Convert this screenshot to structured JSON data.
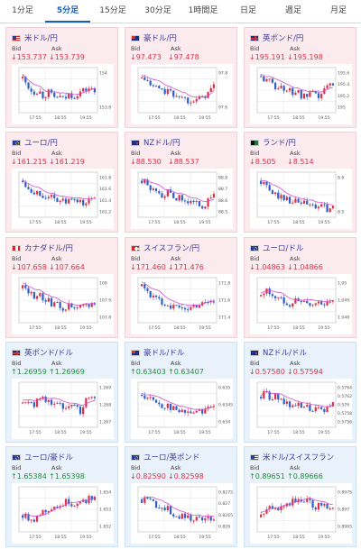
{
  "tabs": [
    {
      "label": "1分足",
      "active": false
    },
    {
      "label": "5分足",
      "active": true
    },
    {
      "label": "15分足",
      "active": false
    },
    {
      "label": "30分足",
      "active": false
    },
    {
      "label": "1時間足",
      "active": false
    },
    {
      "label": "日足",
      "active": false
    },
    {
      "label": "週足",
      "active": false
    },
    {
      "label": "月足",
      "active": false
    }
  ],
  "labels": {
    "bid": "Bid",
    "ask": "Ask"
  },
  "time_labels": [
    "17:55",
    "18:55",
    "19:55"
  ],
  "cards": [
    {
      "title": "米ドル/円",
      "flag": "us",
      "bid": "153.737",
      "ask": "153.739",
      "dir": "down",
      "theme": "pink",
      "yticks": [
        "154",
        "153.8"
      ],
      "trend": [
        0.8,
        0.6,
        0.45,
        0.5,
        0.35,
        0.45,
        0.3,
        0.35,
        0.25,
        0.4,
        0.35,
        0.45,
        0.5,
        0.55,
        0.45
      ]
    },
    {
      "title": "豪ドル/円",
      "flag": "au",
      "bid": "97.473",
      "ask": "97.478",
      "dir": "down",
      "theme": "pink",
      "yticks": [
        "97.8",
        "97.6"
      ],
      "trend": [
        0.8,
        0.75,
        0.55,
        0.6,
        0.45,
        0.5,
        0.35,
        0.4,
        0.3,
        0.25,
        0.3,
        0.25,
        0.35,
        0.45,
        0.6
      ]
    },
    {
      "title": "英ポンド/円",
      "flag": "gb",
      "bid": "195.191",
      "ask": "195.198",
      "dir": "down",
      "theme": "pink",
      "yticks": [
        "195.6",
        "195.4",
        "195.2",
        "195"
      ],
      "trend": [
        0.85,
        0.7,
        0.75,
        0.55,
        0.6,
        0.5,
        0.45,
        0.5,
        0.3,
        0.35,
        0.4,
        0.3,
        0.45,
        0.6,
        0.7
      ]
    },
    {
      "title": "ユーロ/円",
      "flag": "eu",
      "bid": "161.215",
      "ask": "161.219",
      "dir": "down",
      "theme": "pink",
      "yticks": [
        "161.8",
        "161.6",
        "161.4",
        "161.2"
      ],
      "trend": [
        0.85,
        0.7,
        0.6,
        0.55,
        0.45,
        0.5,
        0.35,
        0.4,
        0.3,
        0.35,
        0.3,
        0.35,
        0.25,
        0.35,
        0.45
      ]
    },
    {
      "title": "NZドル/円",
      "flag": "nz",
      "bid": "88.530",
      "ask": "88.537",
      "dir": "down",
      "theme": "pink",
      "yticks": [
        "88.8",
        "88.7",
        "88.6",
        "88.5"
      ],
      "trend": [
        0.85,
        0.75,
        0.6,
        0.65,
        0.5,
        0.55,
        0.4,
        0.45,
        0.3,
        0.35,
        0.25,
        0.3,
        0.2,
        0.35,
        0.5
      ]
    },
    {
      "title": "ランド/円",
      "flag": "za",
      "bid": "8.505",
      "ask": "8.514",
      "dir": "down",
      "theme": "pink",
      "yticks": [
        "8.6",
        "8.5"
      ],
      "trend": [
        0.85,
        0.7,
        0.55,
        0.5,
        0.45,
        0.4,
        0.35,
        0.3,
        0.3,
        0.25,
        0.2,
        0.2,
        0.18,
        0.15,
        0.15
      ]
    },
    {
      "title": "カナダドル/円",
      "flag": "ca",
      "bid": "107.658",
      "ask": "107.664",
      "dir": "down",
      "theme": "pink",
      "yticks": [
        "108",
        "107.9",
        "107.8"
      ],
      "trend": [
        0.8,
        0.75,
        0.6,
        0.65,
        0.5,
        0.55,
        0.35,
        0.4,
        0.3,
        0.35,
        0.25,
        0.3,
        0.35,
        0.4,
        0.45
      ]
    },
    {
      "title": "スイスフラン/円",
      "flag": "ch",
      "bid": "171.460",
      "ask": "171.476",
      "dir": "down",
      "theme": "pink",
      "yticks": [
        "171.8",
        "171.6",
        "171.4"
      ],
      "trend": [
        0.85,
        0.75,
        0.6,
        0.5,
        0.45,
        0.4,
        0.35,
        0.3,
        0.25,
        0.3,
        0.35,
        0.4,
        0.45,
        0.5,
        0.45
      ]
    },
    {
      "title": "ユーロ/ドル",
      "flag": "eu",
      "bid": "1.04863",
      "ask": "1.04866",
      "dir": "down",
      "theme": "pink",
      "yticks": [
        "1.05",
        "1.049",
        "1.048"
      ],
      "trend": [
        0.6,
        0.75,
        0.65,
        0.55,
        0.5,
        0.45,
        0.4,
        0.55,
        0.45,
        0.4,
        0.35,
        0.45,
        0.4,
        0.5,
        0.45
      ]
    },
    {
      "title": "英ポンド/ドル",
      "flag": "gb",
      "bid": "1.26959",
      "ask": "1.26969",
      "dir": "up",
      "theme": "blue",
      "yticks": [
        "1.269",
        "1.268",
        "1.267"
      ],
      "trend": [
        0.55,
        0.65,
        0.5,
        0.6,
        0.7,
        0.55,
        0.6,
        0.5,
        0.45,
        0.55,
        0.5,
        0.3,
        0.55,
        0.7,
        0.75
      ]
    },
    {
      "title": "豪ドル/ドル",
      "flag": "au",
      "bid": "0.63403",
      "ask": "0.63407",
      "dir": "up",
      "theme": "blue",
      "yticks": [
        "0.635",
        "0.6345",
        "0.634"
      ],
      "trend": [
        0.75,
        0.7,
        0.6,
        0.55,
        0.45,
        0.5,
        0.4,
        0.35,
        0.3,
        0.35,
        0.3,
        0.4,
        0.35,
        0.45,
        0.5
      ]
    },
    {
      "title": "NZドル/ドル",
      "flag": "nz",
      "bid": "0.57580",
      "ask": "0.57594",
      "dir": "down",
      "theme": "blue",
      "yticks": [
        "0.5764",
        "0.5762",
        "0.576",
        "0.5758",
        "0.5756"
      ],
      "trend": [
        0.7,
        0.8,
        0.65,
        0.7,
        0.55,
        0.6,
        0.45,
        0.5,
        0.4,
        0.45,
        0.35,
        0.4,
        0.3,
        0.45,
        0.55
      ]
    },
    {
      "title": "ユーロ/豪ドル",
      "flag": "eu",
      "bid": "1.65384",
      "ask": "1.65398",
      "dir": "up",
      "theme": "blue",
      "yticks": [
        "1.654",
        "1.653",
        "1.652"
      ],
      "trend": [
        0.35,
        0.3,
        0.25,
        0.35,
        0.45,
        0.5,
        0.6,
        0.55,
        0.65,
        0.7,
        0.6,
        0.75,
        0.7,
        0.8,
        0.75
      ]
    },
    {
      "title": "ユーロ/英ポンド",
      "flag": "eu",
      "bid": "0.82590",
      "ask": "0.82598",
      "dir": "down",
      "theme": "blue",
      "yticks": [
        "0.8275",
        "0.827",
        "0.8265",
        "0.826"
      ],
      "trend": [
        0.75,
        0.8,
        0.7,
        0.6,
        0.55,
        0.5,
        0.4,
        0.35,
        0.3,
        0.35,
        0.25,
        0.3,
        0.2,
        0.25,
        0.3
      ]
    },
    {
      "title": "米ドル/スイスフラン",
      "flag": "us",
      "bid": "0.89651",
      "ask": "0.89666",
      "dir": "up",
      "theme": "blue",
      "yticks": [
        "0.8975",
        "0.897",
        "0.8965"
      ],
      "trend": [
        0.3,
        0.45,
        0.55,
        0.5,
        0.65,
        0.6,
        0.7,
        0.75,
        0.65,
        0.7,
        0.6,
        0.55,
        0.65,
        0.6,
        0.55
      ]
    }
  ]
}
